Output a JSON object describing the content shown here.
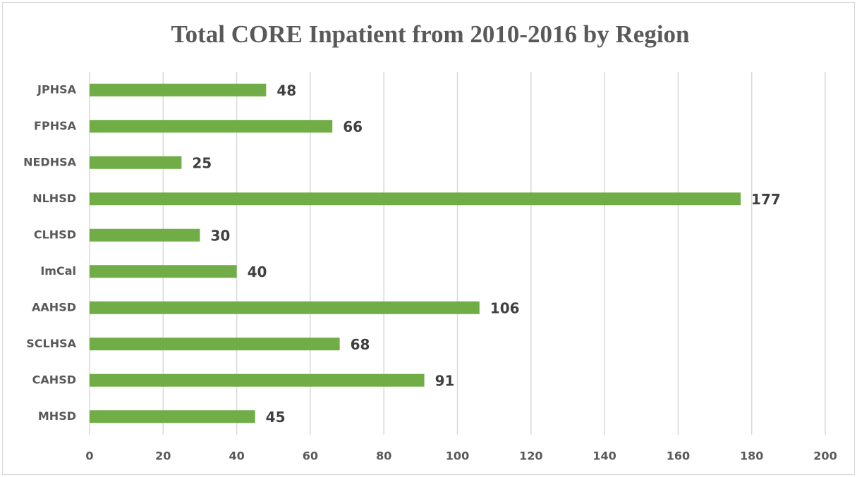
{
  "chart_data": {
    "type": "bar",
    "orientation": "horizontal",
    "title": "Total CORE Inpatient from 2010-2016 by Region",
    "categories": [
      "JPHSA",
      "FPHSA",
      "NEDHSA",
      "NLHSD",
      "CLHSD",
      "ImCal",
      "AAHSD",
      "SCLHSA",
      "CAHSD",
      "MHSD"
    ],
    "values": [
      48,
      66,
      25,
      177,
      30,
      40,
      106,
      68,
      91,
      45
    ],
    "color": "#70ad47",
    "xlim": [
      0,
      200
    ],
    "xticks": [
      0,
      20,
      40,
      60,
      80,
      100,
      120,
      140,
      160,
      180,
      200
    ],
    "grid": true
  }
}
